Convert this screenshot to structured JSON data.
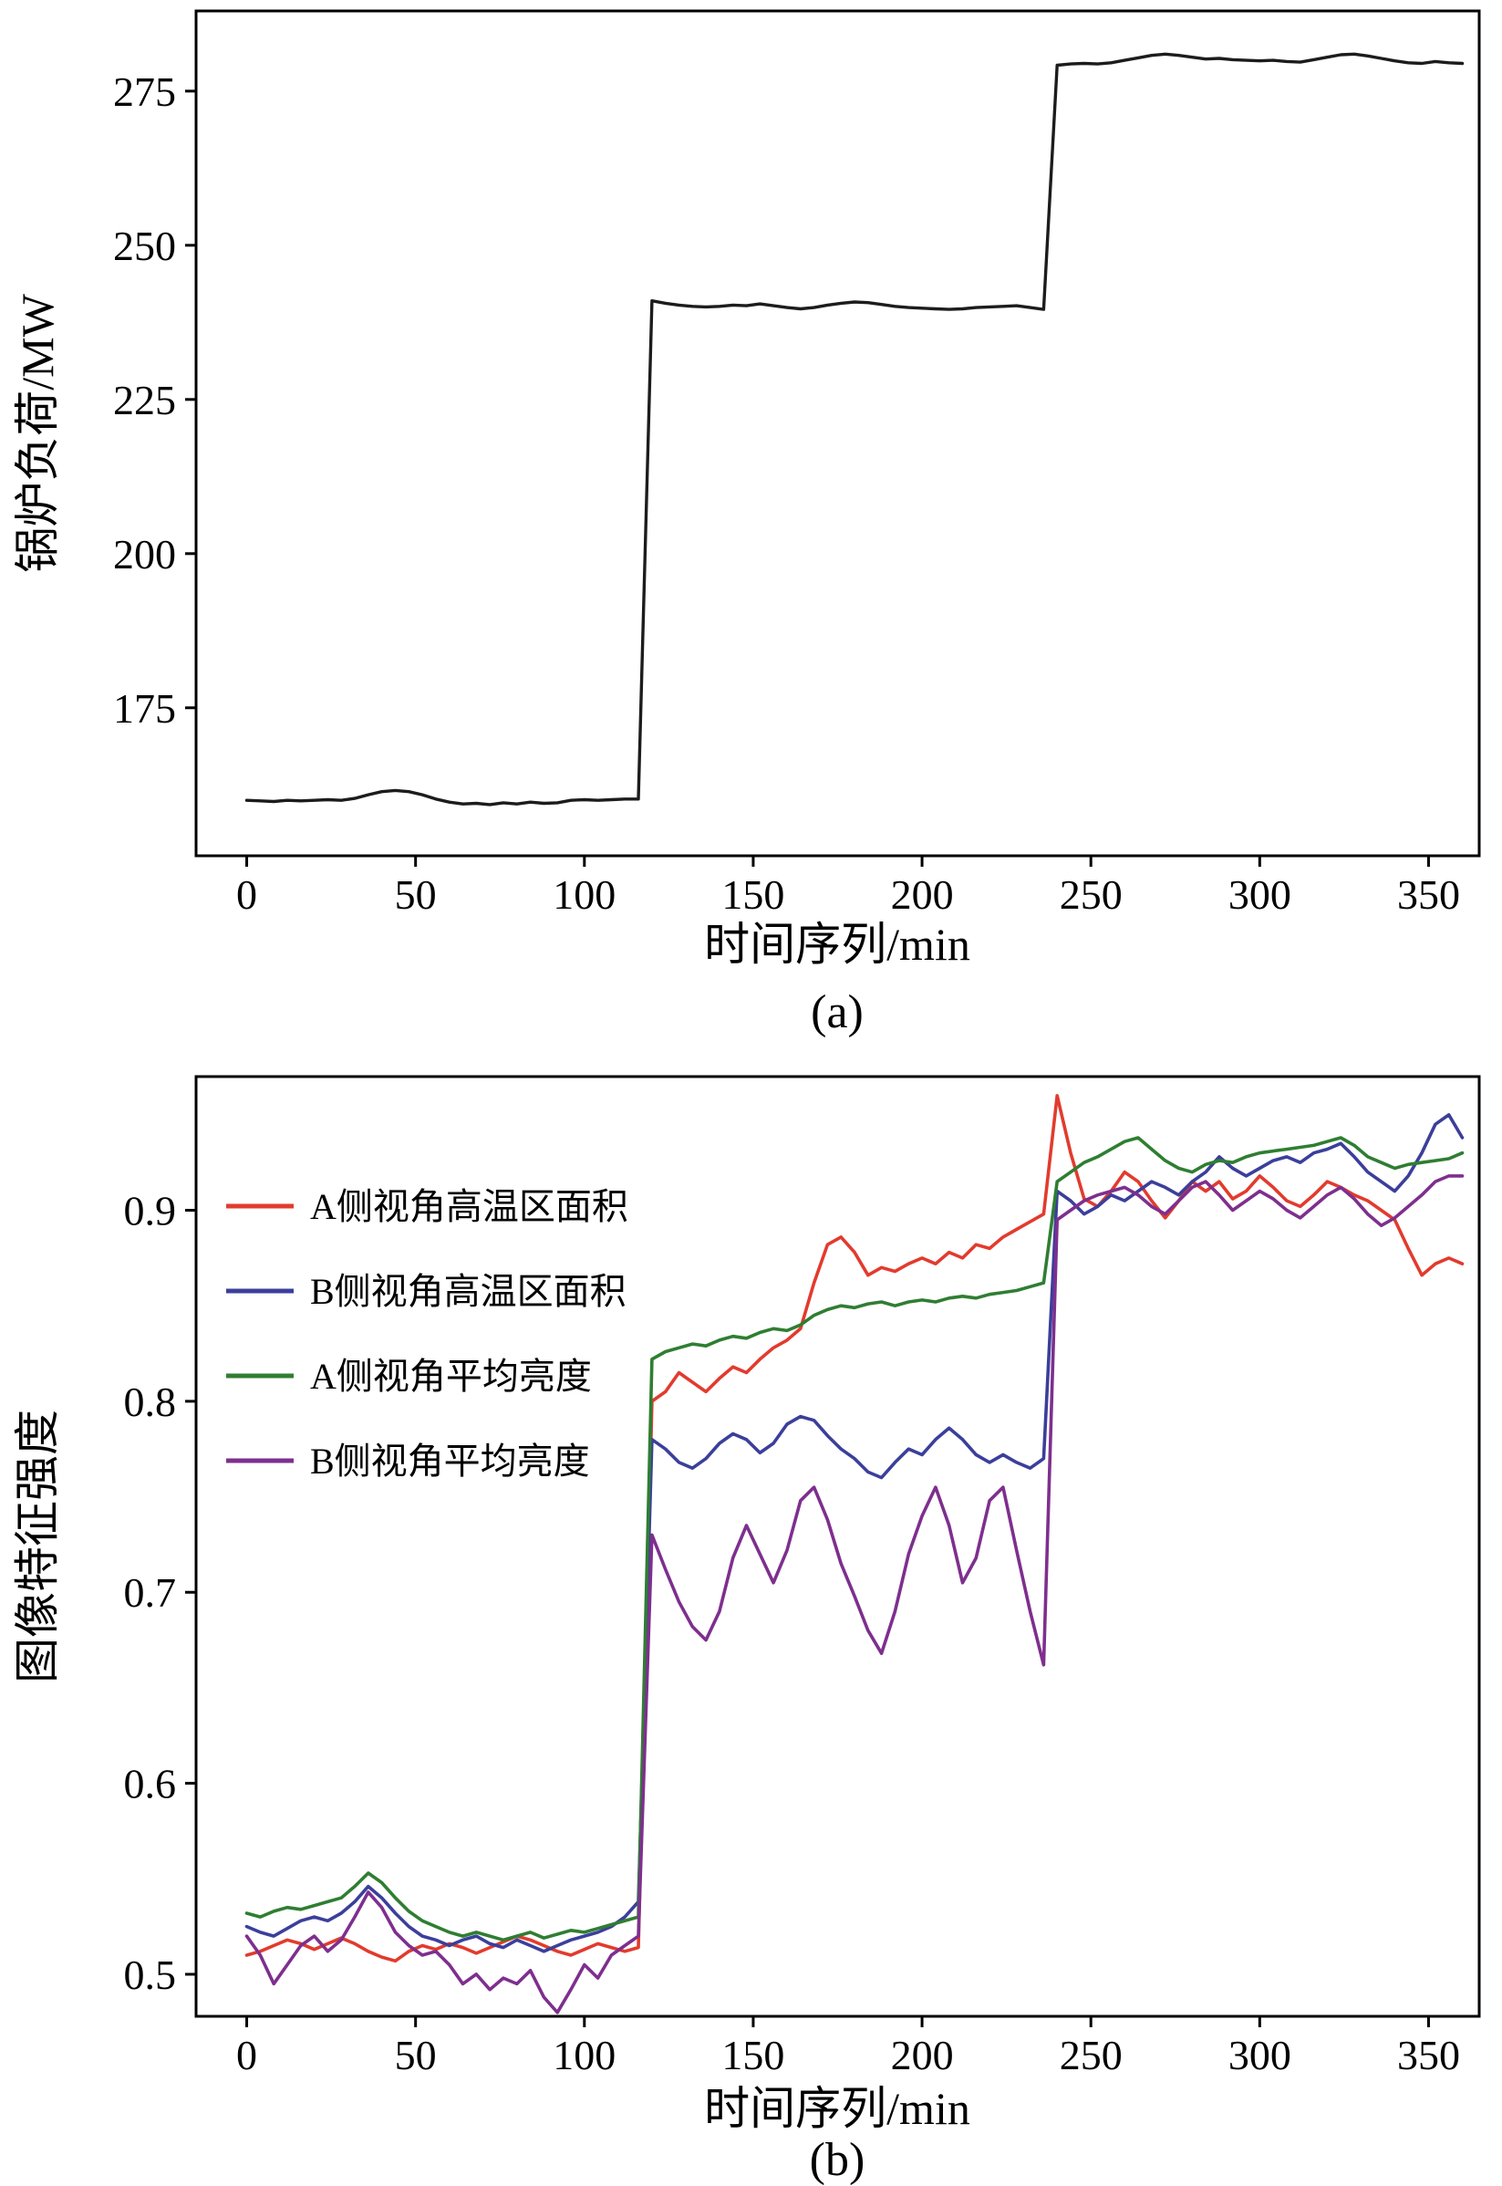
{
  "captions": {
    "a": "(a)",
    "b": "(b)"
  },
  "colors": {
    "load_line": "#1c1c1c",
    "red": "#e23b2e",
    "blue": "#3b3f9b",
    "green": "#2f7e32",
    "purple": "#7e2f8e"
  },
  "chart_data": [
    {
      "id": "chart-a",
      "type": "line",
      "title": "",
      "xlabel": "时间序列/min",
      "ylabel": "锅炉负荷/MW",
      "xlim": [
        -15,
        365
      ],
      "ylim": [
        151,
        288
      ],
      "xticks": [
        0,
        50,
        100,
        150,
        200,
        250,
        300,
        350
      ],
      "yticks": [
        175,
        200,
        225,
        250,
        275
      ],
      "grid": false,
      "x_start": 0,
      "x_step": 4,
      "series": [
        {
          "key": "boiler-load",
          "name": "锅炉负荷",
          "color": "#1c1c1c",
          "width": 3.4,
          "values": [
            160.0,
            159.9,
            159.8,
            160.0,
            159.9,
            160.0,
            160.1,
            160.0,
            160.3,
            160.9,
            161.4,
            161.6,
            161.4,
            160.9,
            160.2,
            159.7,
            159.4,
            159.5,
            159.3,
            159.6,
            159.4,
            159.7,
            159.5,
            159.6,
            160.0,
            160.1,
            160.0,
            160.1,
            160.2,
            160.2,
            241.0,
            240.6,
            240.3,
            240.1,
            240.0,
            240.1,
            240.3,
            240.2,
            240.5,
            240.2,
            239.9,
            239.7,
            239.9,
            240.3,
            240.6,
            240.8,
            240.7,
            240.4,
            240.1,
            239.9,
            239.8,
            239.7,
            239.6,
            239.7,
            239.9,
            240.0,
            240.1,
            240.2,
            239.9,
            239.6,
            279.2,
            279.4,
            279.5,
            279.4,
            279.6,
            280.0,
            280.4,
            280.8,
            281.0,
            280.8,
            280.5,
            280.2,
            280.3,
            280.1,
            280.0,
            279.9,
            280.0,
            279.8,
            279.7,
            280.1,
            280.5,
            280.9,
            281.0,
            280.7,
            280.3,
            279.9,
            279.6,
            279.5,
            279.8,
            279.6,
            279.5
          ]
        }
      ]
    },
    {
      "id": "chart-b",
      "type": "line",
      "title": "",
      "xlabel": "时间序列/min",
      "ylabel": "图像特征强度",
      "xlim": [
        -15,
        365
      ],
      "ylim": [
        0.478,
        0.97
      ],
      "xticks": [
        0,
        50,
        100,
        150,
        200,
        250,
        300,
        350
      ],
      "yticks": [
        0.5,
        0.6,
        0.7,
        0.8,
        0.9
      ],
      "grid": false,
      "legend_position": "top-left",
      "x_start": 0,
      "x_step": 4,
      "series": [
        {
          "key": "a-side-high-temp-area",
          "name": "A侧视角高温区面积",
          "color": "#e23b2e",
          "width": 3.6,
          "values": [
            0.51,
            0.512,
            0.515,
            0.518,
            0.516,
            0.513,
            0.516,
            0.519,
            0.516,
            0.512,
            0.509,
            0.507,
            0.512,
            0.515,
            0.513,
            0.516,
            0.514,
            0.511,
            0.514,
            0.517,
            0.52,
            0.518,
            0.515,
            0.512,
            0.51,
            0.513,
            0.516,
            0.514,
            0.512,
            0.514,
            0.8,
            0.805,
            0.815,
            0.81,
            0.805,
            0.812,
            0.818,
            0.815,
            0.822,
            0.828,
            0.832,
            0.838,
            0.862,
            0.882,
            0.886,
            0.878,
            0.866,
            0.87,
            0.868,
            0.872,
            0.875,
            0.872,
            0.878,
            0.875,
            0.882,
            0.88,
            0.886,
            0.89,
            0.894,
            0.898,
            0.96,
            0.93,
            0.906,
            0.902,
            0.91,
            0.92,
            0.915,
            0.905,
            0.896,
            0.905,
            0.915,
            0.91,
            0.915,
            0.906,
            0.91,
            0.918,
            0.912,
            0.905,
            0.902,
            0.908,
            0.915,
            0.912,
            0.908,
            0.905,
            0.9,
            0.895,
            0.88,
            0.866,
            0.872,
            0.875,
            0.872
          ]
        },
        {
          "key": "b-side-high-temp-area",
          "name": "B侧视角高温区面积",
          "color": "#3b3f9b",
          "width": 3.6,
          "values": [
            0.525,
            0.522,
            0.52,
            0.524,
            0.528,
            0.53,
            0.528,
            0.532,
            0.538,
            0.546,
            0.54,
            0.532,
            0.525,
            0.52,
            0.518,
            0.515,
            0.518,
            0.52,
            0.516,
            0.514,
            0.518,
            0.515,
            0.512,
            0.515,
            0.518,
            0.52,
            0.522,
            0.525,
            0.53,
            0.538,
            0.78,
            0.775,
            0.768,
            0.765,
            0.77,
            0.778,
            0.783,
            0.78,
            0.773,
            0.778,
            0.788,
            0.792,
            0.79,
            0.782,
            0.775,
            0.77,
            0.763,
            0.76,
            0.768,
            0.775,
            0.772,
            0.78,
            0.786,
            0.78,
            0.772,
            0.768,
            0.772,
            0.768,
            0.765,
            0.77,
            0.91,
            0.905,
            0.898,
            0.902,
            0.908,
            0.905,
            0.91,
            0.915,
            0.912,
            0.908,
            0.915,
            0.92,
            0.928,
            0.922,
            0.918,
            0.922,
            0.926,
            0.928,
            0.925,
            0.93,
            0.932,
            0.935,
            0.928,
            0.92,
            0.915,
            0.91,
            0.918,
            0.93,
            0.945,
            0.95,
            0.938
          ]
        },
        {
          "key": "a-side-avg-brightness",
          "name": "A侧视角平均亮度",
          "color": "#2f7e32",
          "width": 3.6,
          "values": [
            0.532,
            0.53,
            0.533,
            0.535,
            0.534,
            0.536,
            0.538,
            0.54,
            0.546,
            0.553,
            0.548,
            0.54,
            0.533,
            0.528,
            0.525,
            0.522,
            0.52,
            0.522,
            0.52,
            0.518,
            0.52,
            0.522,
            0.519,
            0.521,
            0.523,
            0.522,
            0.524,
            0.526,
            0.528,
            0.53,
            0.822,
            0.826,
            0.828,
            0.83,
            0.829,
            0.832,
            0.834,
            0.833,
            0.836,
            0.838,
            0.837,
            0.84,
            0.845,
            0.848,
            0.85,
            0.849,
            0.851,
            0.852,
            0.85,
            0.852,
            0.853,
            0.852,
            0.854,
            0.855,
            0.854,
            0.856,
            0.857,
            0.858,
            0.86,
            0.862,
            0.915,
            0.92,
            0.925,
            0.928,
            0.932,
            0.936,
            0.938,
            0.932,
            0.926,
            0.922,
            0.92,
            0.924,
            0.926,
            0.925,
            0.928,
            0.93,
            0.931,
            0.932,
            0.933,
            0.934,
            0.936,
            0.938,
            0.934,
            0.928,
            0.925,
            0.922,
            0.924,
            0.925,
            0.926,
            0.927,
            0.93
          ]
        },
        {
          "key": "b-side-avg-brightness",
          "name": "B侧视角平均亮度",
          "color": "#7e2f8e",
          "width": 3.6,
          "values": [
            0.52,
            0.51,
            0.495,
            0.505,
            0.515,
            0.52,
            0.512,
            0.518,
            0.53,
            0.543,
            0.535,
            0.522,
            0.515,
            0.51,
            0.512,
            0.505,
            0.495,
            0.5,
            0.492,
            0.498,
            0.495,
            0.502,
            0.488,
            0.48,
            0.492,
            0.505,
            0.498,
            0.51,
            0.515,
            0.52,
            0.73,
            0.712,
            0.695,
            0.682,
            0.675,
            0.69,
            0.718,
            0.735,
            0.72,
            0.705,
            0.722,
            0.748,
            0.755,
            0.738,
            0.715,
            0.698,
            0.68,
            0.668,
            0.69,
            0.72,
            0.74,
            0.755,
            0.735,
            0.705,
            0.718,
            0.748,
            0.755,
            0.722,
            0.69,
            0.662,
            0.895,
            0.9,
            0.905,
            0.908,
            0.91,
            0.912,
            0.908,
            0.902,
            0.898,
            0.905,
            0.912,
            0.915,
            0.908,
            0.9,
            0.905,
            0.91,
            0.906,
            0.9,
            0.896,
            0.902,
            0.908,
            0.912,
            0.906,
            0.898,
            0.892,
            0.896,
            0.902,
            0.908,
            0.915,
            0.918,
            0.918
          ]
        }
      ]
    }
  ]
}
